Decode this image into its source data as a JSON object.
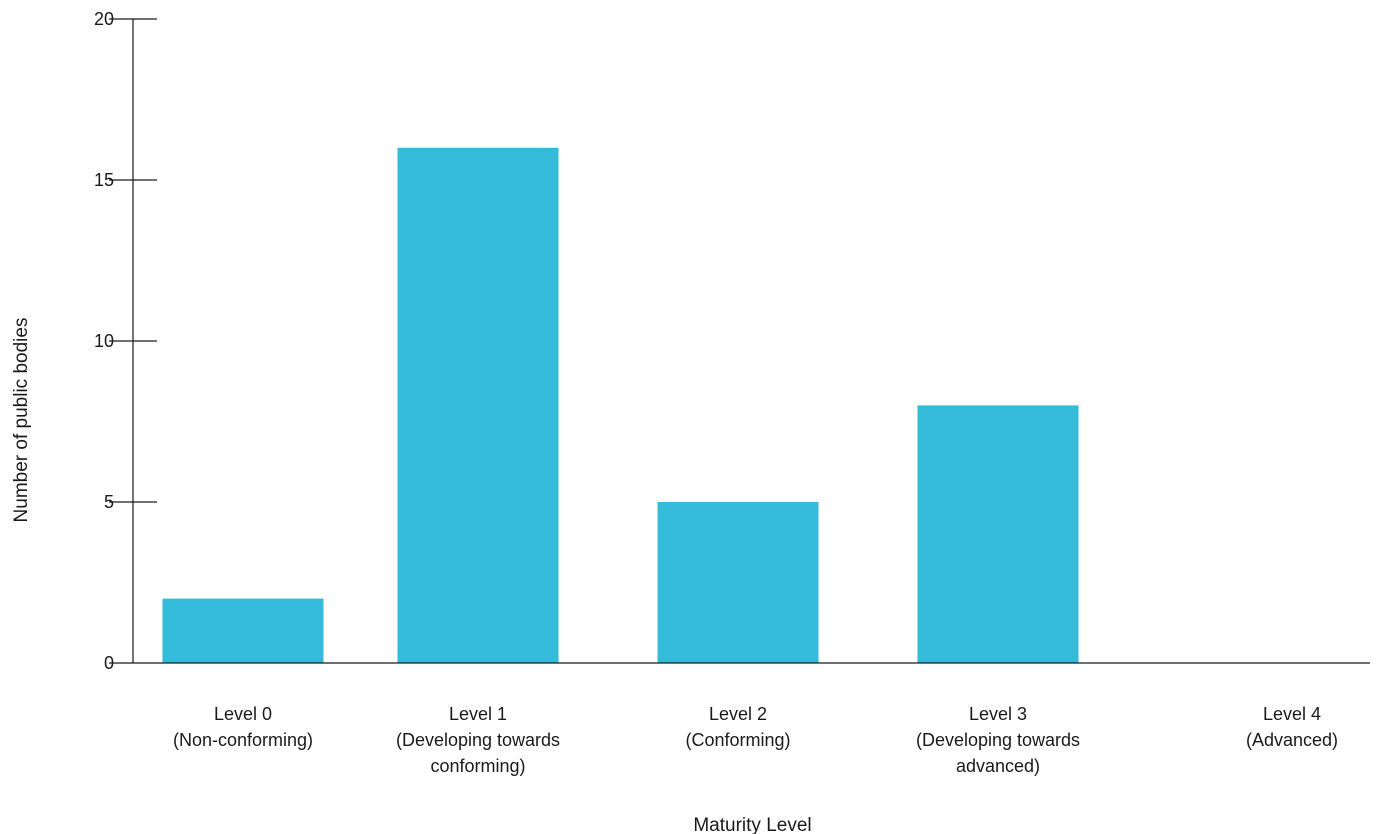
{
  "chart_data": {
    "type": "bar",
    "categories": [
      [
        "Level 0",
        "(Non-conforming)"
      ],
      [
        "Level 1",
        "(Developing towards",
        "conforming)"
      ],
      [
        "Level 2",
        "(Conforming)"
      ],
      [
        "Level 3",
        "(Developing towards",
        "advanced)"
      ],
      [
        "Level 4",
        "(Advanced)"
      ]
    ],
    "values": [
      2,
      16,
      5,
      8,
      0
    ],
    "xlabel": "Maturity Level",
    "ylabel": "Number of public bodies",
    "ylim": [
      0,
      20
    ],
    "yticks": [
      0,
      5,
      10,
      15,
      20
    ],
    "grid": false,
    "legend": "none",
    "bar_color": "#33bbd9",
    "axis_color": "#1a1a1a"
  }
}
